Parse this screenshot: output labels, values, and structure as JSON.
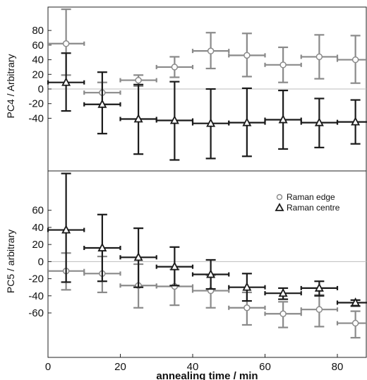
{
  "chart_data": {
    "type": "scatter",
    "x_axis": {
      "label": "annealing time / min",
      "range": [
        0,
        88
      ],
      "ticks": [
        0,
        20,
        40,
        60,
        80
      ]
    },
    "legend": {
      "position": "right of lower panel",
      "entries": [
        {
          "label": "Raman edge",
          "marker": "circle"
        },
        {
          "label": "Raman centre",
          "marker": "triangle"
        }
      ]
    },
    "colors": {
      "edge": "#8a8a8a",
      "centre": "#1a1a1a",
      "zero_line": "#bdbdbd"
    },
    "panels": [
      {
        "ylabel": "PC4 / Arbitrary",
        "ylim": [
          -112,
          112
        ],
        "yticks": [
          -40,
          -20,
          0,
          20,
          40,
          60,
          80
        ],
        "series": [
          {
            "key": "edge",
            "marker": "circle",
            "points": [
              {
                "x": 5,
                "y": 62,
                "xerr": 5,
                "yerr_up": 47,
                "yerr_down": 43
              },
              {
                "x": 15,
                "y": -5,
                "xerr": 5,
                "yerr_up": 14,
                "yerr_down": 16
              },
              {
                "x": 25,
                "y": 12,
                "xerr": 5,
                "yerr_up": 7,
                "yerr_down": 8
              },
              {
                "x": 35,
                "y": 30,
                "xerr": 5,
                "yerr_up": 14,
                "yerr_down": 14
              },
              {
                "x": 45,
                "y": 52,
                "xerr": 5,
                "yerr_up": 25,
                "yerr_down": 24
              },
              {
                "x": 55,
                "y": 46,
                "xerr": 5,
                "yerr_up": 30,
                "yerr_down": 29
              },
              {
                "x": 65,
                "y": 33,
                "xerr": 5,
                "yerr_up": 24,
                "yerr_down": 24
              },
              {
                "x": 75,
                "y": 44,
                "xerr": 5,
                "yerr_up": 30,
                "yerr_down": 30
              },
              {
                "x": 85,
                "y": 40,
                "xerr": 5,
                "yerr_up": 33,
                "yerr_down": 32
              }
            ]
          },
          {
            "key": "centre",
            "marker": "triangle",
            "points": [
              {
                "x": 5,
                "y": 9,
                "xerr": 5,
                "yerr_up": 40,
                "yerr_down": 39
              },
              {
                "x": 15,
                "y": -21,
                "xerr": 5,
                "yerr_up": 44,
                "yerr_down": 40
              },
              {
                "x": 25,
                "y": -41,
                "xerr": 5,
                "yerr_up": 47,
                "yerr_down": 48
              },
              {
                "x": 35,
                "y": -43,
                "xerr": 5,
                "yerr_up": 53,
                "yerr_down": 54
              },
              {
                "x": 45,
                "y": -47,
                "xerr": 5,
                "yerr_up": 47,
                "yerr_down": 48
              },
              {
                "x": 55,
                "y": -46,
                "xerr": 5,
                "yerr_up": 47,
                "yerr_down": 46
              },
              {
                "x": 65,
                "y": -42,
                "xerr": 5,
                "yerr_up": 40,
                "yerr_down": 40
              },
              {
                "x": 75,
                "y": -46,
                "xerr": 5,
                "yerr_up": 33,
                "yerr_down": 34
              },
              {
                "x": 85,
                "y": -45,
                "xerr": 5,
                "yerr_up": 30,
                "yerr_down": 30
              }
            ]
          }
        ]
      },
      {
        "ylabel": "PC5 / arbitrary",
        "ylim": [
          -112,
          106
        ],
        "yticks": [
          -60,
          -40,
          -20,
          0,
          20,
          40,
          60
        ],
        "series": [
          {
            "key": "edge",
            "marker": "circle",
            "points": [
              {
                "x": 5,
                "y": -11,
                "xerr": 5,
                "yerr_up": 21,
                "yerr_down": 22
              },
              {
                "x": 15,
                "y": -14,
                "xerr": 5,
                "yerr_up": 20,
                "yerr_down": 22
              },
              {
                "x": 25,
                "y": -28,
                "xerr": 5,
                "yerr_up": 25,
                "yerr_down": 26
              },
              {
                "x": 35,
                "y": -29,
                "xerr": 5,
                "yerr_up": 20,
                "yerr_down": 22
              },
              {
                "x": 45,
                "y": -34,
                "xerr": 5,
                "yerr_up": 18,
                "yerr_down": 20
              },
              {
                "x": 55,
                "y": -54,
                "xerr": 5,
                "yerr_up": 18,
                "yerr_down": 20
              },
              {
                "x": 65,
                "y": -61,
                "xerr": 5,
                "yerr_up": 14,
                "yerr_down": 16
              },
              {
                "x": 75,
                "y": -56,
                "xerr": 5,
                "yerr_up": 17,
                "yerr_down": 20
              },
              {
                "x": 85,
                "y": -72,
                "xerr": 5,
                "yerr_up": 14,
                "yerr_down": 17
              }
            ]
          },
          {
            "key": "centre",
            "marker": "triangle",
            "points": [
              {
                "x": 5,
                "y": 37,
                "xerr": 5,
                "yerr_up": 66,
                "yerr_down": 61
              },
              {
                "x": 15,
                "y": 16,
                "xerr": 5,
                "yerr_up": 39,
                "yerr_down": 39
              },
              {
                "x": 25,
                "y": 5,
                "xerr": 5,
                "yerr_up": 34,
                "yerr_down": 35
              },
              {
                "x": 35,
                "y": -6,
                "xerr": 5,
                "yerr_up": 23,
                "yerr_down": 22
              },
              {
                "x": 45,
                "y": -15,
                "xerr": 5,
                "yerr_up": 17,
                "yerr_down": 17
              },
              {
                "x": 55,
                "y": -30,
                "xerr": 5,
                "yerr_up": 16,
                "yerr_down": 16
              },
              {
                "x": 65,
                "y": -37,
                "xerr": 5,
                "yerr_up": 6,
                "yerr_down": 7
              },
              {
                "x": 75,
                "y": -31,
                "xerr": 5,
                "yerr_up": 8,
                "yerr_down": 9
              },
              {
                "x": 85,
                "y": -48,
                "xerr": 5,
                "yerr_up": 3,
                "yerr_down": 4
              }
            ]
          }
        ]
      }
    ]
  }
}
